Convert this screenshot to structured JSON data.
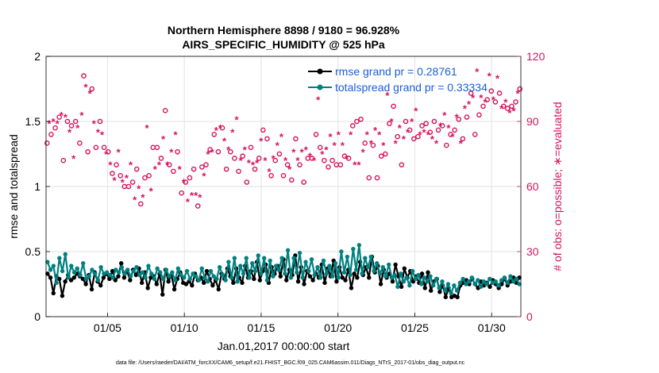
{
  "chart_data": {
    "type": "line",
    "title_line1": "Northern Hemisphere 8898 / 9180 = 96.928%",
    "title_line2": "AIRS_SPECIFIC_HUMIDITY @ 525 hPa",
    "xlabel": "Jan.01,2017 00:00:00 start",
    "ylabel": "rmse and totalspread",
    "ylabel_right": "# of obs: o=possible; ∗=evaluated",
    "footer": "data file: /Users/raeder/DAI/ATM_forcXX/CAM6_setup/f.e21.FHIST_BGC.f09_025.CAM6assim.011/Diags_NTrS_2017-01/obs_diag_output.nc",
    "xlim": [
      1.0,
      31.9
    ],
    "ylim": [
      0,
      2
    ],
    "ylim_right": [
      0,
      120
    ],
    "x_ticks": [
      5,
      10,
      15,
      20,
      25,
      30
    ],
    "x_tick_labels": [
      "01/05",
      "01/10",
      "01/15",
      "01/20",
      "01/25",
      "01/30"
    ],
    "y_ticks": [
      0,
      0.5,
      1,
      1.5,
      2
    ],
    "y_tick_labels": [
      "0",
      "0.5",
      "1",
      "1.5",
      "2"
    ],
    "y_ticks_right": [
      0,
      30,
      60,
      90,
      120
    ],
    "y_tick_labels_right": [
      "0",
      "30",
      "60",
      "90",
      "120"
    ],
    "grid": true,
    "legend_position": "top-right",
    "colors": {
      "rmse": "#000000",
      "spread": "#008080",
      "obs": "#d6135c",
      "legend_text": "#1a5fd6",
      "grid": "#e2e2e2"
    },
    "series": [
      {
        "name": "rmse grand pr = 0.28761",
        "values": [
          0.33,
          0.3,
          0.18,
          0.31,
          0.29,
          0.16,
          0.27,
          0.32,
          0.28,
          0.3,
          0.33,
          0.31,
          0.29,
          0.25,
          0.32,
          0.21,
          0.34,
          0.27,
          0.24,
          0.3,
          0.33,
          0.29,
          0.35,
          0.28,
          0.31,
          0.41,
          0.3,
          0.35,
          0.28,
          0.36,
          0.32,
          0.37,
          0.26,
          0.34,
          0.22,
          0.3,
          0.31,
          0.25,
          0.33,
          0.17,
          0.36,
          0.27,
          0.32,
          0.21,
          0.29,
          0.34,
          0.26,
          0.25,
          0.27,
          0.24,
          0.33,
          0.28,
          0.3,
          0.26,
          0.35,
          0.29,
          0.24,
          0.28,
          0.21,
          0.33,
          0.29,
          0.37,
          0.31,
          0.26,
          0.37,
          0.3,
          0.26,
          0.39,
          0.3,
          0.35,
          0.29,
          0.42,
          0.28,
          0.35,
          0.4,
          0.26,
          0.38,
          0.33,
          0.39,
          0.31,
          0.44,
          0.28,
          0.36,
          0.32,
          0.47,
          0.27,
          0.38,
          0.25,
          0.35,
          0.31,
          0.28,
          0.33,
          0.3,
          0.4,
          0.26,
          0.37,
          0.31,
          0.43,
          0.27,
          0.38,
          0.3,
          0.28,
          0.36,
          0.22,
          0.33,
          0.3,
          0.42,
          0.32,
          0.38,
          0.3,
          0.46,
          0.34,
          0.39,
          0.25,
          0.36,
          0.3,
          0.33,
          0.27,
          0.4,
          0.31,
          0.23,
          0.37,
          0.3,
          0.35,
          0.27,
          0.31,
          0.26,
          0.33,
          0.22,
          0.34,
          0.2,
          0.27,
          0.29,
          0.19,
          0.24,
          0.15,
          0.22,
          0.15,
          0.16,
          0.15,
          0.24,
          0.26,
          0.28,
          0.25,
          0.29,
          0.25,
          0.22,
          0.27,
          0.24,
          0.26,
          0.23,
          0.28,
          0.25,
          0.22,
          0.25,
          0.29,
          0.24,
          0.27,
          0.3,
          0.26,
          0.3
        ]
      },
      {
        "name": "totalspread grand pr = 0.33334",
        "values": [
          0.42,
          0.36,
          0.39,
          0.26,
          0.45,
          0.35,
          0.48,
          0.3,
          0.39,
          0.34,
          0.37,
          0.32,
          0.41,
          0.29,
          0.31,
          0.36,
          0.33,
          0.28,
          0.38,
          0.33,
          0.34,
          0.32,
          0.3,
          0.36,
          0.34,
          0.38,
          0.33,
          0.36,
          0.31,
          0.35,
          0.38,
          0.32,
          0.34,
          0.3,
          0.39,
          0.33,
          0.29,
          0.37,
          0.34,
          0.29,
          0.36,
          0.31,
          0.34,
          0.28,
          0.37,
          0.32,
          0.3,
          0.35,
          0.29,
          0.33,
          0.31,
          0.28,
          0.37,
          0.3,
          0.27,
          0.35,
          0.31,
          0.29,
          0.38,
          0.32,
          0.28,
          0.42,
          0.3,
          0.45,
          0.27,
          0.39,
          0.33,
          0.45,
          0.3,
          0.41,
          0.35,
          0.47,
          0.33,
          0.45,
          0.28,
          0.43,
          0.31,
          0.39,
          0.36,
          0.45,
          0.33,
          0.51,
          0.3,
          0.45,
          0.34,
          0.49,
          0.3,
          0.42,
          0.35,
          0.44,
          0.32,
          0.38,
          0.3,
          0.43,
          0.33,
          0.39,
          0.31,
          0.41,
          0.3,
          0.5,
          0.34,
          0.46,
          0.32,
          0.52,
          0.36,
          0.55,
          0.33,
          0.45,
          0.38,
          0.46,
          0.35,
          0.41,
          0.33,
          0.38,
          0.31,
          0.4,
          0.3,
          0.32,
          0.23,
          0.33,
          0.27,
          0.3,
          0.24,
          0.35,
          0.29,
          0.32,
          0.25,
          0.3,
          0.27,
          0.31,
          0.24,
          0.29,
          0.22,
          0.27,
          0.2,
          0.25,
          0.18,
          0.24,
          0.2,
          0.26,
          0.29,
          0.25,
          0.27,
          0.3,
          0.25,
          0.28,
          0.23,
          0.27,
          0.25,
          0.29,
          0.26,
          0.27,
          0.24,
          0.28,
          0.3,
          0.26,
          0.31,
          0.27,
          0.29,
          0.25
        ]
      },
      {
        "name": "possible",
        "values": [
          80,
          89,
          84,
          90,
          87,
          89,
          92,
          93,
          72,
          92,
          90,
          85,
          88,
          73,
          90,
          87,
          80,
          93,
          111,
          106,
          76,
          103,
          105,
          89,
          78,
          85,
          90,
          84,
          78,
          75,
          76,
          70,
          66,
          63,
          70,
          76,
          65,
          62,
          60,
          64,
          60,
          70,
          62,
          54,
          68,
          59,
          52,
          55,
          64,
          87,
          65,
          58,
          78,
          68,
          78,
          70,
          73,
          82,
          95,
          70,
          70,
          76,
          67,
          84,
          76,
          68,
          57,
          62,
          62,
          53,
          64,
          56,
          68,
          56,
          51,
          55,
          69,
          65,
          70,
          75,
          77,
          76,
          84,
          86,
          76,
          87,
          87,
          81,
          68,
          77,
          76,
          85,
          73,
          91,
          67,
          72,
          74,
          77,
          62,
          71,
          78,
          70,
          68,
          71,
          73,
          81,
          86,
          72,
          82,
          67,
          65,
          73,
          72,
          79,
          75,
          83,
          65,
          72,
          70,
          68,
          63,
          76,
          82,
          72,
          70,
          76,
          62,
          77,
          73,
          74,
          73,
          72,
          84,
          100,
          78,
          75,
          72,
          77,
          69,
          83,
          72,
          79,
          70,
          84,
          70,
          79,
          74,
          73,
          73,
          84,
          88,
          70,
          90,
          70,
          91,
          76,
          80,
          84,
          64,
          80,
          79,
          86,
          64,
          84,
          74,
          79,
          75,
          102,
          89,
          90,
          97,
          80,
          83,
          87,
          70,
          82,
          90,
          85,
          86,
          90,
          82,
          95,
          83,
          84,
          88,
          85,
          89,
          84,
          85,
          82,
          90,
          80,
          86,
          88,
          88,
          93,
          79,
          87,
          84,
          83,
          86,
          92,
          91,
          80,
          82,
          96,
          92,
          98,
          103,
          101,
          84,
          113,
          93,
          101,
          97,
          99,
          100,
          111,
          104,
          100,
          99,
          110,
          103,
          96,
          97,
          99,
          96,
          94,
          97,
          95,
          99,
          103,
          105
        ]
      }
    ]
  }
}
